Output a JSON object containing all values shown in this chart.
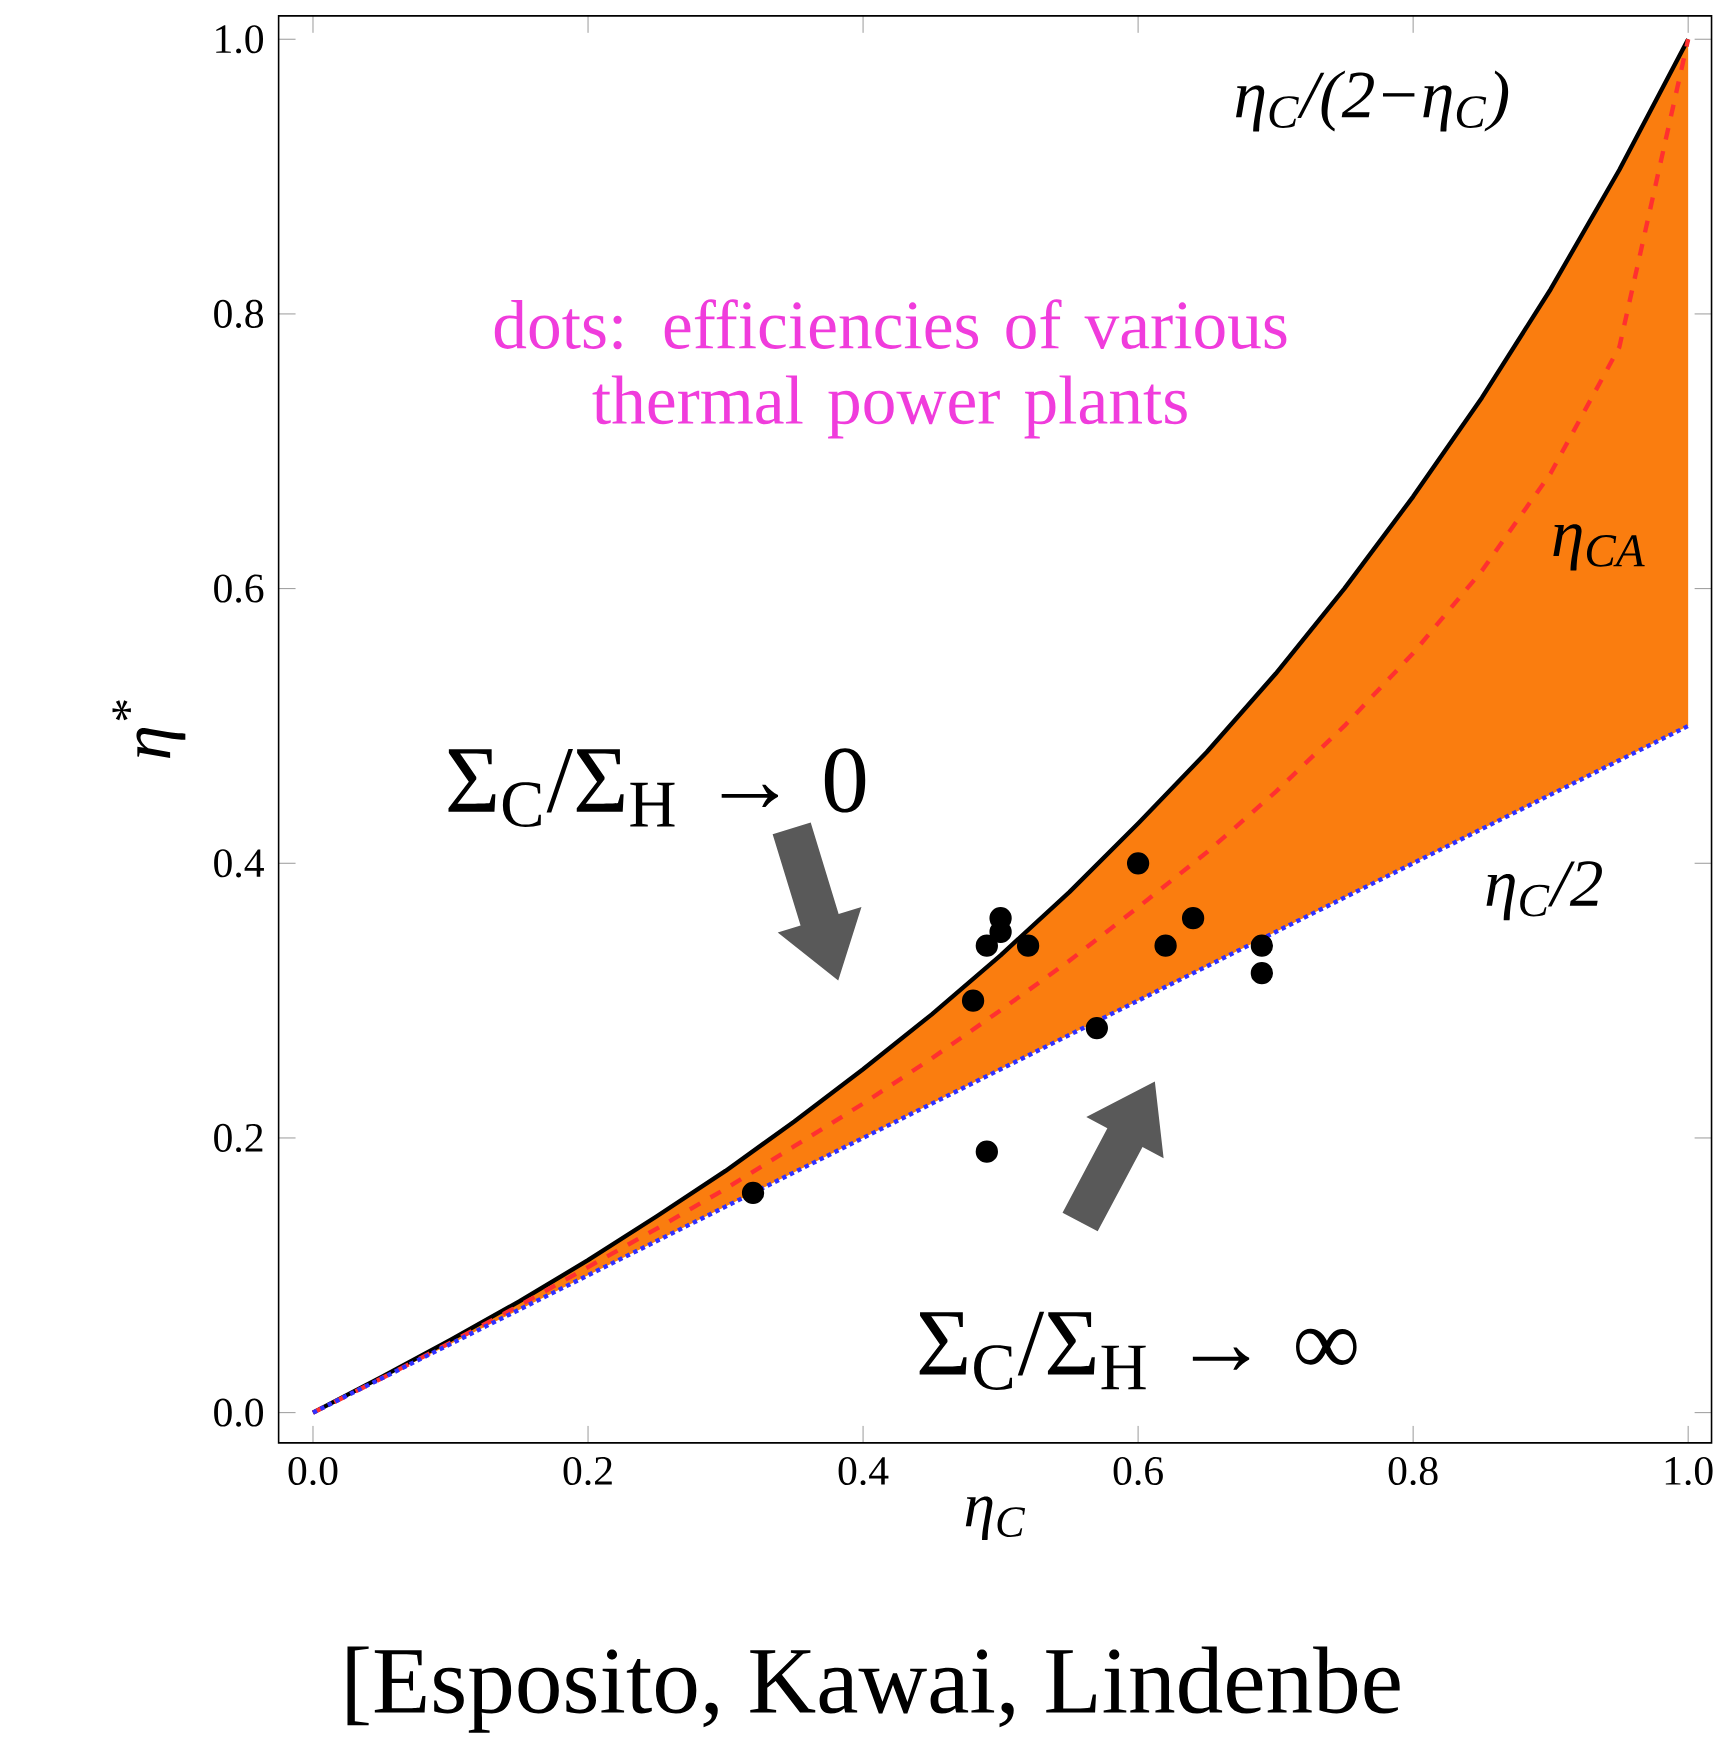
{
  "chart_data": {
    "type": "line",
    "xlabel": "η$_{C}$",
    "ylabel": "η$^{*}$",
    "xlim": [
      -0.025,
      1.017
    ],
    "ylim": [
      -0.022,
      1.017
    ],
    "xticks": [
      {
        "value": 0,
        "label": "0.0"
      },
      {
        "value": 0.2,
        "label": "0.2"
      },
      {
        "value": 0.4,
        "label": "0.4"
      },
      {
        "value": 0.6,
        "label": "0.6"
      },
      {
        "value": 0.8,
        "label": "0.8"
      },
      {
        "value": 1,
        "label": "1.0"
      }
    ],
    "yticks": [
      {
        "value": 0,
        "label": "0.0"
      },
      {
        "value": 0.2,
        "label": "0.2"
      },
      {
        "value": 0.4,
        "label": "0.4"
      },
      {
        "value": 0.6,
        "label": "0.6"
      },
      {
        "value": 0.8,
        "label": "0.8"
      },
      {
        "value": 1,
        "label": "1.0"
      }
    ],
    "series": [
      {
        "name": "η$_{C}$/(2−η$_{C}$)",
        "color": "#000000",
        "line_style": "solid",
        "x": [
          0,
          0.05,
          0.1,
          0.15,
          0.2,
          0.25,
          0.3,
          0.35,
          0.4,
          0.45,
          0.5,
          0.55,
          0.6,
          0.65,
          0.7,
          0.75,
          0.8,
          0.85,
          0.9,
          0.95,
          1
        ],
        "values": [
          0,
          0.026,
          0.053,
          0.081,
          0.111,
          0.143,
          0.176,
          0.212,
          0.25,
          0.29,
          0.333,
          0.379,
          0.429,
          0.481,
          0.538,
          0.6,
          0.667,
          0.739,
          0.818,
          0.905,
          1
        ]
      },
      {
        "name": "η$_{CA}$",
        "color": "#ff3030",
        "line_style": "dashed",
        "x": [
          0,
          0.05,
          0.1,
          0.15,
          0.2,
          0.25,
          0.3,
          0.35,
          0.4,
          0.45,
          0.5,
          0.55,
          0.6,
          0.65,
          0.7,
          0.75,
          0.8,
          0.85,
          0.9,
          0.95,
          1
        ],
        "values": [
          0,
          0.025,
          0.051,
          0.078,
          0.106,
          0.134,
          0.163,
          0.194,
          0.225,
          0.258,
          0.293,
          0.329,
          0.368,
          0.408,
          0.452,
          0.5,
          0.553,
          0.613,
          0.684,
          0.776,
          1
        ],
        "lower": [
          0,
          0.025,
          0.05,
          0.075,
          0.1,
          0.125,
          0.15,
          0.175,
          0.2,
          0.225,
          0.25,
          0.275,
          0.3,
          0.325,
          0.35,
          0.375,
          0.4,
          0.425,
          0.45,
          0.475,
          0.5
        ],
        "upper": [
          0,
          0.026,
          0.053,
          0.081,
          0.111,
          0.143,
          0.176,
          0.212,
          0.25,
          0.29,
          0.333,
          0.379,
          0.429,
          0.481,
          0.538,
          0.6,
          0.667,
          0.739,
          0.818,
          0.905,
          1
        ]
      },
      {
        "name": "η$_{C}$/2",
        "color": "#3030ff",
        "line_style": "dotted",
        "x": [
          0,
          0.05,
          0.1,
          0.15,
          0.2,
          0.25,
          0.3,
          0.35,
          0.4,
          0.45,
          0.5,
          0.55,
          0.6,
          0.65,
          0.7,
          0.75,
          0.8,
          0.85,
          0.9,
          0.95,
          1
        ],
        "values": [
          0,
          0.025,
          0.05,
          0.075,
          0.1,
          0.125,
          0.15,
          0.175,
          0.2,
          0.225,
          0.25,
          0.275,
          0.3,
          0.325,
          0.35,
          0.375,
          0.4,
          0.425,
          0.45,
          0.475,
          0.5
        ]
      },
      {
        "type": "scatter",
        "color": "#000000",
        "x": [
          0.32,
          0.48,
          0.49,
          0.49,
          0.5,
          0.5,
          0.52,
          0.57,
          0.6,
          0.62,
          0.64,
          0.69,
          0.69
        ],
        "values": [
          0.16,
          0.3,
          0.19,
          0.34,
          0.35,
          0.36,
          0.34,
          0.28,
          0.4,
          0.34,
          0.36,
          0.34,
          0.32
        ]
      }
    ],
    "annotations": [
      "dots: efficiencies of various thermal power plants",
      "Σ$_{C}$/Σ$_{H}$ → 0",
      "Σ$_{C}$/Σ$_{H}$ → ∞",
      "[Esposito, Kawai, Lindenbe"
    ]
  }
}
